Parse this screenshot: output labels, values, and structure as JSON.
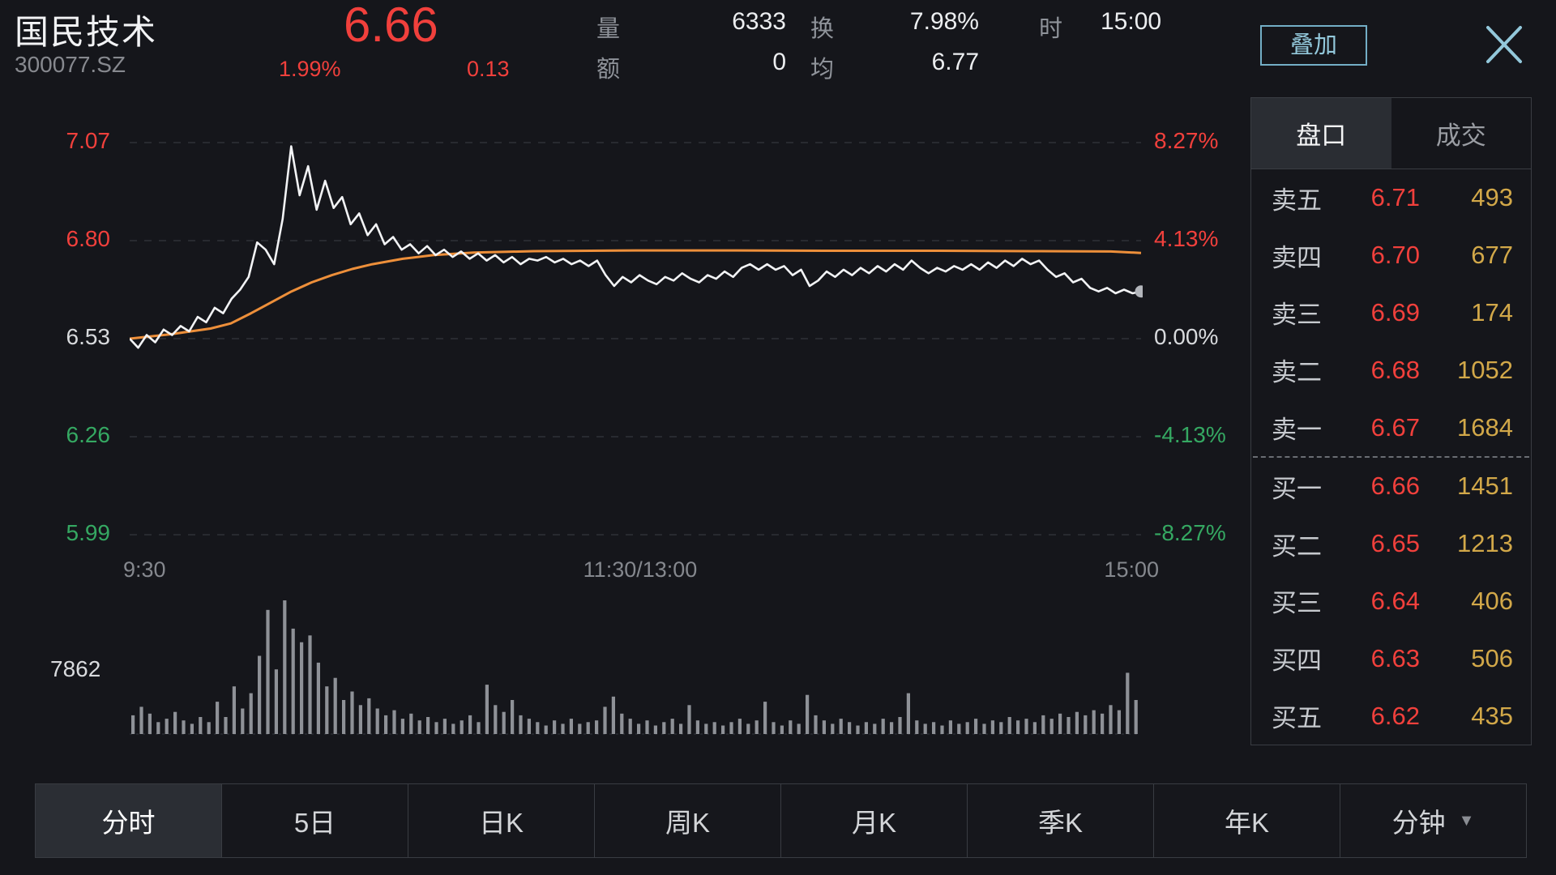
{
  "header": {
    "stock_name": "国民技术",
    "stock_code": "300077.SZ",
    "price": "6.66",
    "change_pct": "1.99%",
    "change_abs": "0.13",
    "stats": [
      {
        "label": "量",
        "value": "6333"
      },
      {
        "label": "额",
        "value": "0"
      },
      {
        "label": "换",
        "value": "7.98%"
      },
      {
        "label": "均",
        "value": "6.77"
      },
      {
        "label": "时",
        "value": "15:00"
      }
    ],
    "overlay_button": "叠加"
  },
  "colors": {
    "red": "#f1403c",
    "green": "#35a862",
    "gold": "#d2a849",
    "orange": "#ed8f3a",
    "teal": "#93c8db",
    "white_text": "#eceef0",
    "gray_text": "#8f939a",
    "price_line": "#f2f3f5",
    "volume_bar": "#8e9197",
    "grid": "#2f3137",
    "end_dot": "#b3b6bc"
  },
  "chart": {
    "left_axis": [
      {
        "label": "7.07",
        "value": 7.07,
        "color": "#f1403c"
      },
      {
        "label": "6.80",
        "value": 6.8,
        "color": "#f1403c"
      },
      {
        "label": "6.53",
        "value": 6.53,
        "color": "#d8dadd"
      },
      {
        "label": "6.26",
        "value": 6.26,
        "color": "#35a862"
      },
      {
        "label": "5.99",
        "value": 5.99,
        "color": "#35a862"
      }
    ],
    "right_axis": [
      {
        "label": "8.27%",
        "value": 7.07,
        "color": "#f1403c"
      },
      {
        "label": "4.13%",
        "value": 6.8,
        "color": "#f1403c"
      },
      {
        "label": "0.00%",
        "value": 6.53,
        "color": "#d8dadd"
      },
      {
        "label": "-4.13%",
        "value": 6.26,
        "color": "#35a862"
      },
      {
        "label": "-8.27%",
        "value": 5.99,
        "color": "#35a862"
      }
    ],
    "x_axis": [
      "9:30",
      "11:30/13:00",
      "15:00"
    ],
    "volume_scale_label": "7862"
  },
  "chart_data": {
    "type": "line",
    "title": "国民技术 300077.SZ 分时走势",
    "x_range": [
      "9:30",
      "15:00"
    ],
    "price_axis": [
      7.07,
      6.8,
      6.53,
      6.26,
      5.99
    ],
    "pct_axis": [
      "8.27%",
      "4.13%",
      "0.00%",
      "-4.13%",
      "-8.27%"
    ],
    "prev_close": 6.53,
    "last": 6.66,
    "high_of_day": 7.06,
    "grid": "dashed-horizontal",
    "price": [
      6.53,
      6.505,
      6.54,
      6.52,
      6.555,
      6.54,
      6.565,
      6.55,
      6.59,
      6.575,
      6.615,
      6.6,
      6.64,
      6.665,
      6.7,
      6.795,
      6.775,
      6.735,
      6.86,
      7.06,
      6.925,
      7.005,
      6.885,
      6.965,
      6.89,
      6.92,
      6.845,
      6.875,
      6.815,
      6.845,
      6.79,
      6.81,
      6.775,
      6.79,
      6.765,
      6.785,
      6.76,
      6.775,
      6.755,
      6.77,
      6.75,
      6.765,
      6.745,
      6.76,
      6.74,
      6.755,
      6.735,
      6.75,
      6.745,
      6.755,
      6.74,
      6.75,
      6.735,
      6.745,
      6.73,
      6.745,
      6.705,
      6.675,
      6.7,
      6.685,
      6.705,
      6.69,
      6.68,
      6.7,
      6.69,
      6.71,
      6.695,
      6.685,
      6.705,
      6.695,
      6.715,
      6.7,
      6.725,
      6.735,
      6.72,
      6.735,
      6.72,
      6.73,
      6.705,
      6.72,
      6.675,
      6.69,
      6.715,
      6.7,
      6.72,
      6.705,
      6.725,
      6.71,
      6.73,
      6.715,
      6.735,
      6.72,
      6.745,
      6.725,
      6.71,
      6.725,
      6.715,
      6.73,
      6.72,
      6.735,
      6.72,
      6.74,
      6.725,
      6.745,
      6.73,
      6.75,
      6.735,
      6.745,
      6.72,
      6.7,
      6.71,
      6.685,
      6.695,
      6.67,
      6.66,
      6.67,
      6.655,
      6.665,
      6.655,
      6.66
    ],
    "avg_line": {
      "x_pct": [
        0,
        4,
        8,
        10,
        12,
        14,
        16,
        18,
        20,
        22,
        24,
        27,
        30,
        34,
        40,
        50,
        60,
        70,
        80,
        90,
        97,
        100
      ],
      "value": [
        6.53,
        6.542,
        6.558,
        6.572,
        6.6,
        6.63,
        6.66,
        6.685,
        6.705,
        6.722,
        6.735,
        6.75,
        6.76,
        6.767,
        6.771,
        6.773,
        6.773,
        6.772,
        6.772,
        6.771,
        6.77,
        6.766
      ]
    },
    "volume_max": 7862,
    "volume": [
      1100,
      1600,
      1200,
      700,
      900,
      1300,
      800,
      600,
      1000,
      700,
      1900,
      1000,
      2800,
      1500,
      2400,
      4600,
      7300,
      3800,
      7862,
      6200,
      5400,
      5800,
      4200,
      2800,
      3300,
      2000,
      2500,
      1700,
      2100,
      1500,
      1100,
      1400,
      900,
      1200,
      800,
      1000,
      700,
      900,
      600,
      800,
      1100,
      700,
      2900,
      1700,
      1300,
      2000,
      1100,
      900,
      700,
      500,
      800,
      600,
      900,
      600,
      700,
      800,
      1600,
      2200,
      1200,
      900,
      600,
      800,
      500,
      700,
      900,
      600,
      1700,
      800,
      600,
      700,
      500,
      700,
      900,
      600,
      800,
      1900,
      700,
      500,
      800,
      600,
      2300,
      1100,
      800,
      600,
      900,
      700,
      500,
      700,
      600,
      900,
      700,
      1000,
      2400,
      800,
      600,
      700,
      500,
      800,
      600,
      700,
      900,
      600,
      800,
      700,
      1000,
      800,
      900,
      700,
      1100,
      900,
      1200,
      1000,
      1300,
      1100,
      1400,
      1200,
      1700,
      1400,
      3600,
      2000
    ]
  },
  "orderbook": {
    "tabs": [
      {
        "label": "盘口",
        "active": true
      },
      {
        "label": "成交",
        "active": false
      }
    ],
    "asks": [
      {
        "label": "卖五",
        "price": "6.71",
        "qty": "493"
      },
      {
        "label": "卖四",
        "price": "6.70",
        "qty": "677"
      },
      {
        "label": "卖三",
        "price": "6.69",
        "qty": "174"
      },
      {
        "label": "卖二",
        "price": "6.68",
        "qty": "1052"
      },
      {
        "label": "卖一",
        "price": "6.67",
        "qty": "1684"
      }
    ],
    "bids": [
      {
        "label": "买一",
        "price": "6.66",
        "qty": "1451"
      },
      {
        "label": "买二",
        "price": "6.65",
        "qty": "1213"
      },
      {
        "label": "买三",
        "price": "6.64",
        "qty": "406"
      },
      {
        "label": "买四",
        "price": "6.63",
        "qty": "506"
      },
      {
        "label": "买五",
        "price": "6.62",
        "qty": "435"
      }
    ]
  },
  "period_tabs": [
    {
      "label": "分时",
      "active": true,
      "dropdown": false
    },
    {
      "label": "5日",
      "active": false,
      "dropdown": false
    },
    {
      "label": "日K",
      "active": false,
      "dropdown": false
    },
    {
      "label": "周K",
      "active": false,
      "dropdown": false
    },
    {
      "label": "月K",
      "active": false,
      "dropdown": false
    },
    {
      "label": "季K",
      "active": false,
      "dropdown": false
    },
    {
      "label": "年K",
      "active": false,
      "dropdown": false
    },
    {
      "label": "分钟",
      "active": false,
      "dropdown": true
    }
  ]
}
